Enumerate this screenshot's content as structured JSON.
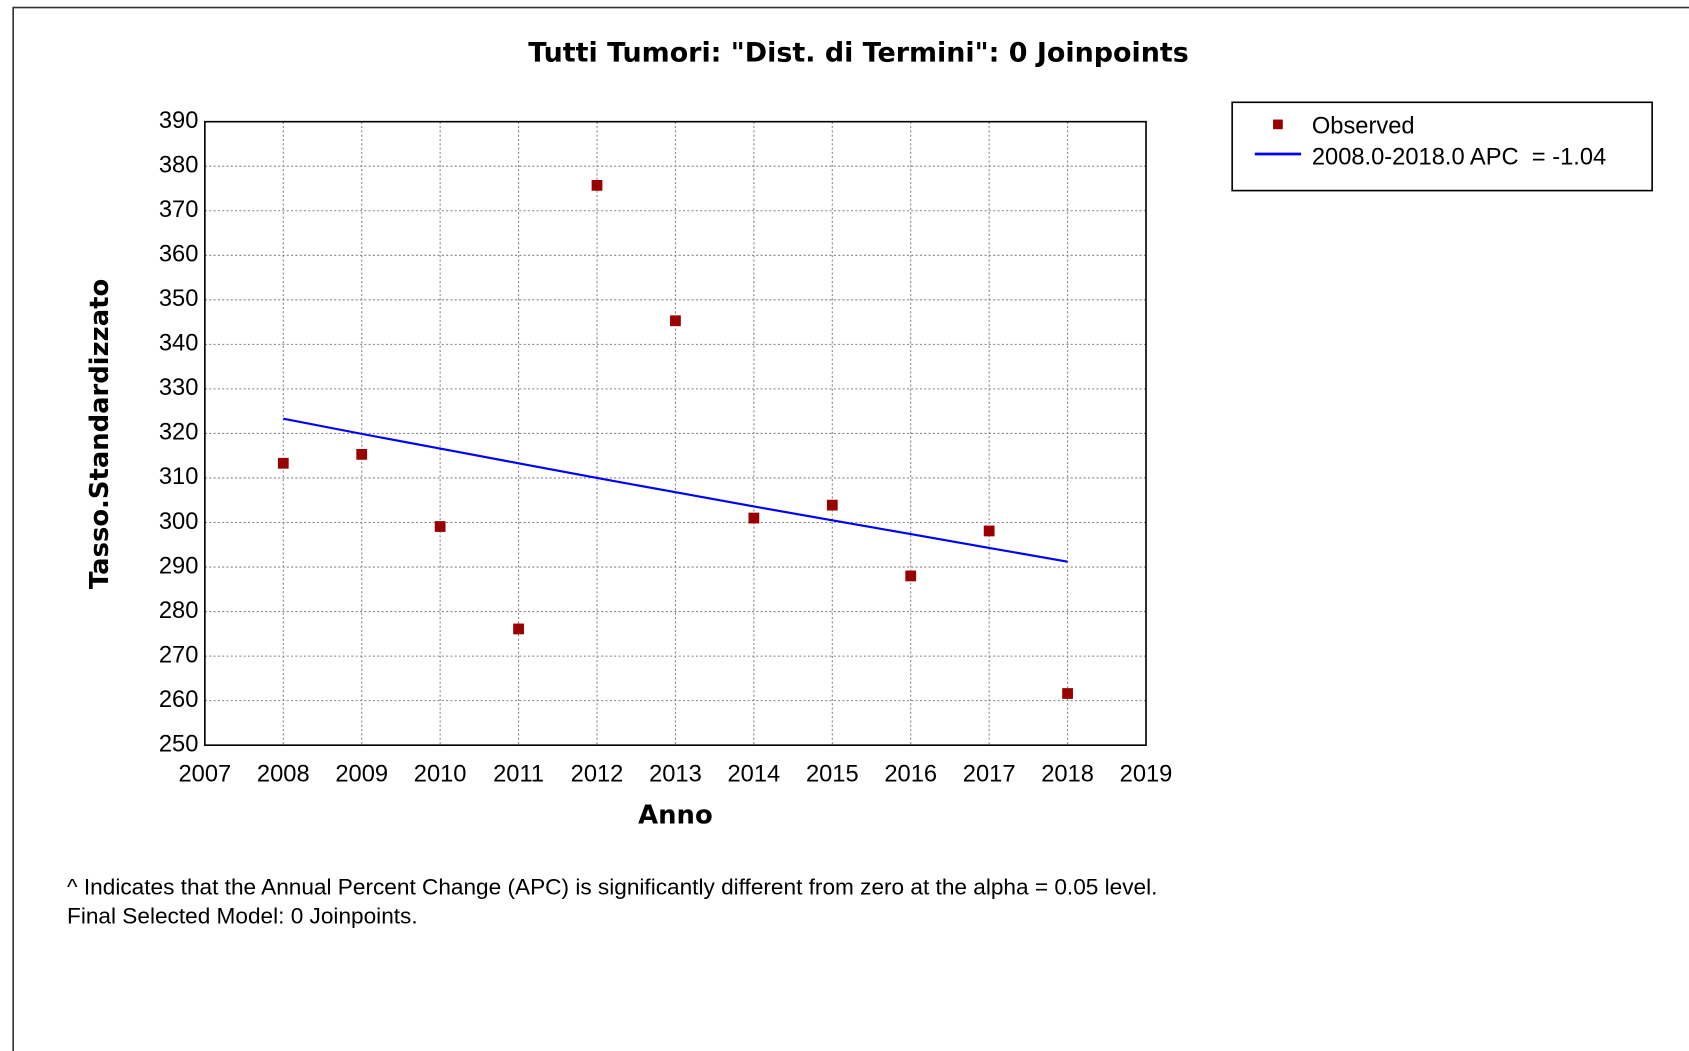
{
  "chart_data": {
    "type": "scatter",
    "title": "Tutti Tumori: \"Dist. di Termini\": 0 Joinpoints",
    "x_label": "Anno",
    "y_label": "Tasso.Standardizzato",
    "x": [
      2008,
      2009,
      2010,
      2011,
      2012,
      2013,
      2014,
      2015,
      2016,
      2017,
      2018
    ],
    "series": [
      {
        "name": "Observed",
        "color": "#990000",
        "mode": "markers",
        "values": [
          313.3,
          315.3,
          299.1,
          276.1,
          375.7,
          345.3,
          301,
          303.9,
          288,
          298.1,
          261.6
        ]
      },
      {
        "name": "2008.0-2018.0 APC  = -1.04",
        "color": "#0000ff",
        "mode": "line",
        "values": [
          323.3,
          319.9,
          316.6,
          313.3,
          310.0,
          306.8,
          303.6,
          300.5,
          297.4,
          294.3,
          291.2
        ]
      }
    ],
    "xlim": [
      2007,
      2019
    ],
    "xticks": [
      2007,
      2008,
      2009,
      2010,
      2011,
      2012,
      2013,
      2014,
      2015,
      2016,
      2017,
      2018,
      2019
    ],
    "ylim": [
      250,
      390
    ],
    "yticks": [
      250,
      260,
      270,
      280,
      290,
      300,
      310,
      320,
      330,
      340,
      350,
      360,
      370,
      380,
      390
    ],
    "grid": true,
    "legend": "outside-right"
  },
  "notes": [
    "^ Indicates that the Annual Percent Change (APC) is significantly different from zero at the alpha = 0.05 level.",
    "Final Selected Model: 0 Joinpoints."
  ]
}
